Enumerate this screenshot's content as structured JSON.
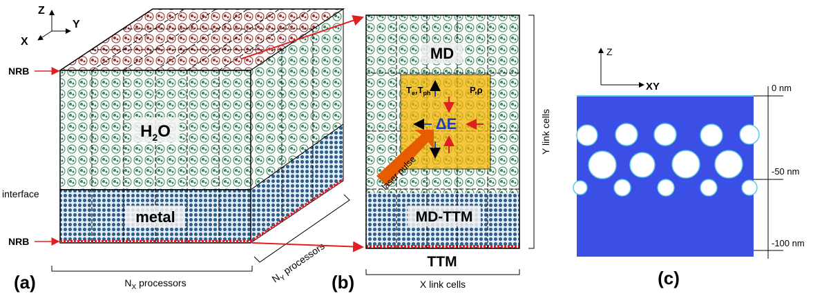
{
  "panel_a": {
    "axes": {
      "z": "Z",
      "y": "Y",
      "x": "X"
    },
    "nrb_top": "NRB",
    "nrb_bottom": "NRB",
    "interface": "interface",
    "water": {
      "base": "H",
      "sub": "2",
      "tail": "O"
    },
    "metal": "metal",
    "label": "(a)",
    "nx": {
      "base": "N",
      "sub": "X",
      "tail": " processors"
    },
    "ny": {
      "base": "N",
      "sub": "Y",
      "tail": " processors"
    }
  },
  "panel_b": {
    "md": "MD",
    "temps": {
      "t1": "T",
      "s1": "e",
      "mid": ",T",
      "s2": "ph"
    },
    "pressure": "P,ρ",
    "energy": "ΔE",
    "laser": "laser pulse",
    "md_ttm": "MD-TTM",
    "ttm": "TTM",
    "label": "(b)",
    "x_cells": "X link cells",
    "y_cells": "Y link cells"
  },
  "panel_c": {
    "axes": {
      "z": "Z",
      "xy": "XY"
    },
    "depths": [
      "0 nm",
      "-50 nm",
      "-100 nm"
    ],
    "label": "(c)"
  }
}
